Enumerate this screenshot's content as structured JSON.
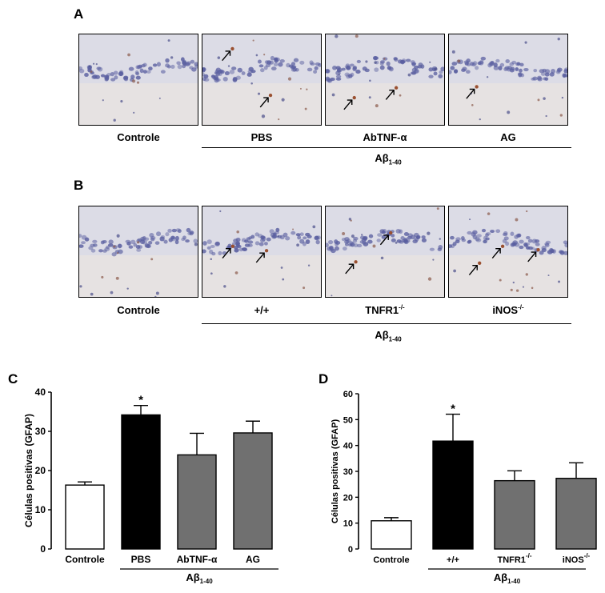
{
  "panelA": {
    "letter": "A",
    "images": [
      {
        "label": "Controle",
        "arrows": 0
      },
      {
        "label": "PBS",
        "arrows": 2
      },
      {
        "label": "AbTNF-α",
        "arrows": 2
      },
      {
        "label": "AG",
        "arrows": 1
      }
    ],
    "group_label_main": "Aβ",
    "group_label_sub": "1-40"
  },
  "panelB": {
    "letter": "B",
    "images": [
      {
        "label": "Controle",
        "arrows": 0
      },
      {
        "label": "+/+",
        "arrows": 2
      },
      {
        "label": "TNFR1",
        "sup": "-/-",
        "arrows": 2
      },
      {
        "label": "iNOS",
        "sup": "-/-",
        "arrows": 3
      }
    ],
    "group_label_main": "Aβ",
    "group_label_sub": "1-40"
  },
  "colors": {
    "control": "#ffffff",
    "pbs": "#000000",
    "treated": "#707070",
    "stain_bg": "#dcdce6",
    "nuclei": "#5a5fa0"
  },
  "chart_data": [
    {
      "panel": "C",
      "type": "bar",
      "categories": [
        "Controle",
        "PBS",
        "AbTNF-α",
        "AG"
      ],
      "values": [
        16.3,
        34.2,
        24.0,
        29.6
      ],
      "errors": [
        0.8,
        2.4,
        5.5,
        3.0
      ],
      "significance": [
        "",
        "*",
        "",
        ""
      ],
      "bar_colors": [
        "#ffffff",
        "#000000",
        "#707070",
        "#707070"
      ],
      "ylabel": "Células positivas (GFAP)",
      "ylim": [
        0,
        40
      ],
      "yticks": [
        0,
        10,
        20,
        30,
        40
      ],
      "group_label_main": "Aβ",
      "group_label_sub": "1-40"
    },
    {
      "panel": "D",
      "type": "bar",
      "categories": [
        "Controle",
        "+/+",
        "TNFR1",
        "iNOS"
      ],
      "category_sups": [
        "",
        "",
        "-/-",
        "-/-"
      ],
      "values": [
        10.9,
        41.7,
        26.4,
        27.3
      ],
      "errors": [
        1.2,
        10.4,
        3.8,
        6.0
      ],
      "significance": [
        "",
        "*",
        "",
        ""
      ],
      "bar_colors": [
        "#ffffff",
        "#000000",
        "#707070",
        "#707070"
      ],
      "ylabel": "Células positivas (GFAP)",
      "ylim": [
        0,
        60
      ],
      "yticks": [
        0,
        10,
        20,
        30,
        40,
        50,
        60
      ],
      "group_label_main": "Aβ",
      "group_label_sub": "1-40"
    }
  ]
}
